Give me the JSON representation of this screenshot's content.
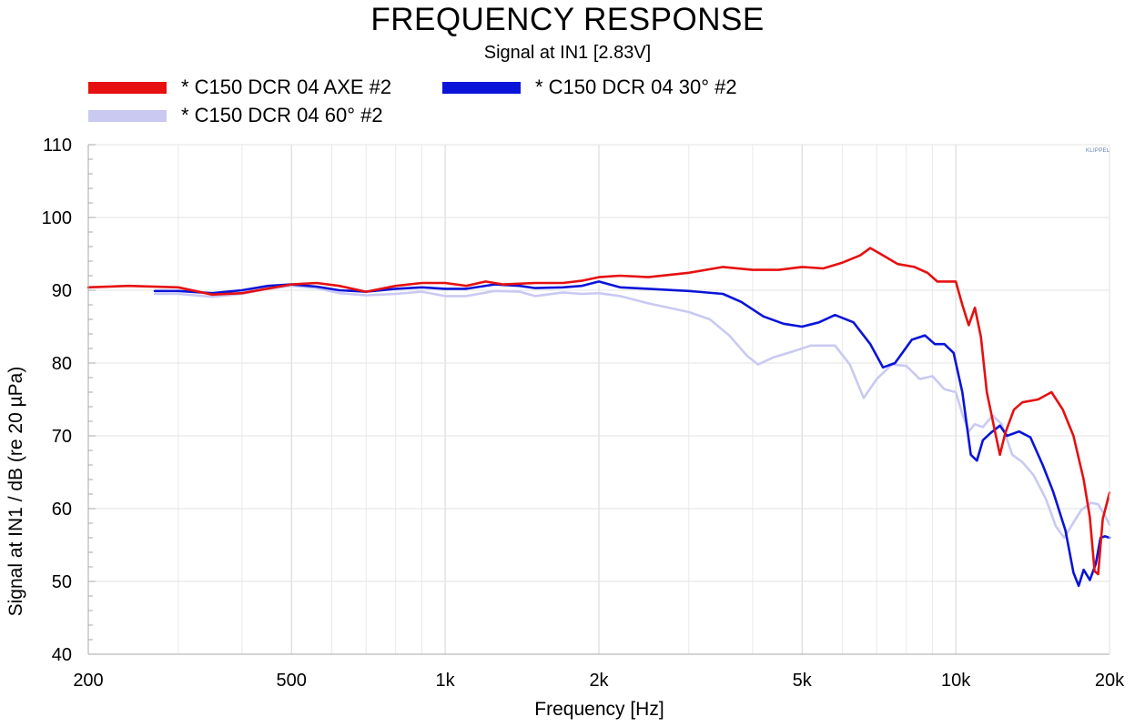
{
  "chart_data": {
    "type": "line",
    "title": "FREQUENCY RESPONSE",
    "subtitle": "Signal at IN1 [2.83V]",
    "xlabel": "Frequency [Hz]",
    "ylabel": "Signal at IN1 / dB (re 20 µPa)",
    "xscale": "log",
    "xlim": [
      200,
      20000
    ],
    "ylim": [
      40,
      110
    ],
    "xticks": [
      {
        "value": 200,
        "label": "200"
      },
      {
        "value": 500,
        "label": "500"
      },
      {
        "value": 1000,
        "label": "1k"
      },
      {
        "value": 2000,
        "label": "2k"
      },
      {
        "value": 5000,
        "label": "5k"
      },
      {
        "value": 10000,
        "label": "10k"
      },
      {
        "value": 20000,
        "label": "20k"
      }
    ],
    "yticks": [
      {
        "value": 40,
        "label": "40"
      },
      {
        "value": 50,
        "label": "50"
      },
      {
        "value": 60,
        "label": "60"
      },
      {
        "value": 70,
        "label": "70"
      },
      {
        "value": 80,
        "label": "80"
      },
      {
        "value": 90,
        "label": "90"
      },
      {
        "value": 100,
        "label": "100"
      },
      {
        "value": 110,
        "label": "110"
      }
    ],
    "grid": true,
    "legend_position": "top-left",
    "watermark": "KLIPPEL",
    "series": [
      {
        "name": "* C150 DCR 04 AXE #2",
        "color": "#e61010",
        "points": [
          [
            200,
            90.4
          ],
          [
            240,
            90.6
          ],
          [
            300,
            90.4
          ],
          [
            350,
            89.4
          ],
          [
            400,
            89.6
          ],
          [
            500,
            90.8
          ],
          [
            560,
            91.0
          ],
          [
            620,
            90.6
          ],
          [
            700,
            89.8
          ],
          [
            800,
            90.6
          ],
          [
            900,
            91.0
          ],
          [
            1000,
            91.0
          ],
          [
            1100,
            90.6
          ],
          [
            1200,
            91.2
          ],
          [
            1300,
            90.8
          ],
          [
            1500,
            91.0
          ],
          [
            1700,
            91.0
          ],
          [
            1850,
            91.3
          ],
          [
            2000,
            91.8
          ],
          [
            2200,
            92.0
          ],
          [
            2500,
            91.8
          ],
          [
            3000,
            92.4
          ],
          [
            3500,
            93.2
          ],
          [
            4000,
            92.8
          ],
          [
            4500,
            92.8
          ],
          [
            5000,
            93.2
          ],
          [
            5500,
            93.0
          ],
          [
            6000,
            93.8
          ],
          [
            6500,
            94.8
          ],
          [
            6800,
            95.8
          ],
          [
            7200,
            94.8
          ],
          [
            7700,
            93.6
          ],
          [
            8300,
            93.2
          ],
          [
            8800,
            92.4
          ],
          [
            9200,
            91.2
          ],
          [
            9600,
            91.2
          ],
          [
            10000,
            91.2
          ],
          [
            10300,
            88.0
          ],
          [
            10600,
            85.2
          ],
          [
            10900,
            87.6
          ],
          [
            11200,
            83.6
          ],
          [
            11500,
            76.0
          ],
          [
            11900,
            71.0
          ],
          [
            12200,
            67.4
          ],
          [
            12500,
            70.4
          ],
          [
            13000,
            73.6
          ],
          [
            13500,
            74.6
          ],
          [
            14500,
            75.0
          ],
          [
            15400,
            76.0
          ],
          [
            16200,
            73.6
          ],
          [
            17000,
            70.0
          ],
          [
            17800,
            64.0
          ],
          [
            18300,
            58.8
          ],
          [
            18700,
            51.4
          ],
          [
            19000,
            51.0
          ],
          [
            19400,
            58.6
          ],
          [
            19800,
            61.0
          ],
          [
            20000,
            62.2
          ]
        ]
      },
      {
        "name": "* C150 DCR 04 30° #2",
        "color": "#0a14d8",
        "points": [
          [
            270,
            89.9
          ],
          [
            300,
            89.9
          ],
          [
            350,
            89.6
          ],
          [
            400,
            90.0
          ],
          [
            450,
            90.6
          ],
          [
            500,
            90.8
          ],
          [
            560,
            90.5
          ],
          [
            620,
            90.0
          ],
          [
            700,
            89.8
          ],
          [
            800,
            90.2
          ],
          [
            900,
            90.4
          ],
          [
            1000,
            90.2
          ],
          [
            1100,
            90.2
          ],
          [
            1250,
            90.8
          ],
          [
            1400,
            90.6
          ],
          [
            1500,
            90.3
          ],
          [
            1700,
            90.4
          ],
          [
            1850,
            90.6
          ],
          [
            2000,
            91.2
          ],
          [
            2200,
            90.4
          ],
          [
            2500,
            90.2
          ],
          [
            3000,
            89.9
          ],
          [
            3500,
            89.5
          ],
          [
            3800,
            88.4
          ],
          [
            4200,
            86.4
          ],
          [
            4600,
            85.4
          ],
          [
            5000,
            85.0
          ],
          [
            5400,
            85.6
          ],
          [
            5800,
            86.6
          ],
          [
            6300,
            85.6
          ],
          [
            6800,
            82.6
          ],
          [
            7200,
            79.4
          ],
          [
            7600,
            80.0
          ],
          [
            8200,
            83.2
          ],
          [
            8700,
            83.8
          ],
          [
            9100,
            82.6
          ],
          [
            9500,
            82.6
          ],
          [
            9900,
            81.4
          ],
          [
            10300,
            76.0
          ],
          [
            10700,
            67.4
          ],
          [
            11000,
            66.6
          ],
          [
            11300,
            69.4
          ],
          [
            11700,
            70.4
          ],
          [
            12200,
            71.4
          ],
          [
            12600,
            70.0
          ],
          [
            13300,
            70.6
          ],
          [
            14000,
            69.8
          ],
          [
            14800,
            66.0
          ],
          [
            15500,
            62.4
          ],
          [
            16400,
            57.0
          ],
          [
            17000,
            51.2
          ],
          [
            17400,
            49.4
          ],
          [
            17800,
            51.6
          ],
          [
            18300,
            50.2
          ],
          [
            18800,
            52.4
          ],
          [
            19200,
            56.0
          ],
          [
            19600,
            56.2
          ],
          [
            20000,
            56.0
          ]
        ]
      },
      {
        "name": "* C150 DCR 04 60° #2",
        "color": "#c9c9f2",
        "points": [
          [
            270,
            89.5
          ],
          [
            300,
            89.5
          ],
          [
            350,
            89.1
          ],
          [
            400,
            89.5
          ],
          [
            450,
            90.2
          ],
          [
            500,
            90.6
          ],
          [
            560,
            90.3
          ],
          [
            620,
            89.6
          ],
          [
            700,
            89.3
          ],
          [
            800,
            89.5
          ],
          [
            900,
            89.8
          ],
          [
            1000,
            89.2
          ],
          [
            1100,
            89.2
          ],
          [
            1250,
            89.9
          ],
          [
            1400,
            89.8
          ],
          [
            1500,
            89.2
          ],
          [
            1700,
            89.7
          ],
          [
            1850,
            89.5
          ],
          [
            2000,
            89.6
          ],
          [
            2200,
            89.2
          ],
          [
            2500,
            88.2
          ],
          [
            3000,
            87.0
          ],
          [
            3300,
            86.0
          ],
          [
            3600,
            83.8
          ],
          [
            3900,
            81.0
          ],
          [
            4100,
            79.8
          ],
          [
            4400,
            80.8
          ],
          [
            4800,
            81.6
          ],
          [
            5200,
            82.4
          ],
          [
            5800,
            82.4
          ],
          [
            6200,
            79.8
          ],
          [
            6600,
            75.2
          ],
          [
            7000,
            77.8
          ],
          [
            7500,
            79.8
          ],
          [
            8000,
            79.6
          ],
          [
            8500,
            77.8
          ],
          [
            9000,
            78.2
          ],
          [
            9500,
            76.4
          ],
          [
            10000,
            76.0
          ],
          [
            10300,
            73.0
          ],
          [
            10600,
            70.6
          ],
          [
            10900,
            71.6
          ],
          [
            11300,
            71.2
          ],
          [
            11800,
            72.8
          ],
          [
            12300,
            71.6
          ],
          [
            12900,
            67.4
          ],
          [
            13500,
            66.4
          ],
          [
            14200,
            64.6
          ],
          [
            15000,
            61.4
          ],
          [
            15700,
            57.6
          ],
          [
            16300,
            56.0
          ],
          [
            16900,
            57.8
          ],
          [
            17600,
            59.8
          ],
          [
            18400,
            60.8
          ],
          [
            19000,
            60.6
          ],
          [
            19600,
            59.0
          ],
          [
            20000,
            57.8
          ]
        ]
      }
    ]
  }
}
